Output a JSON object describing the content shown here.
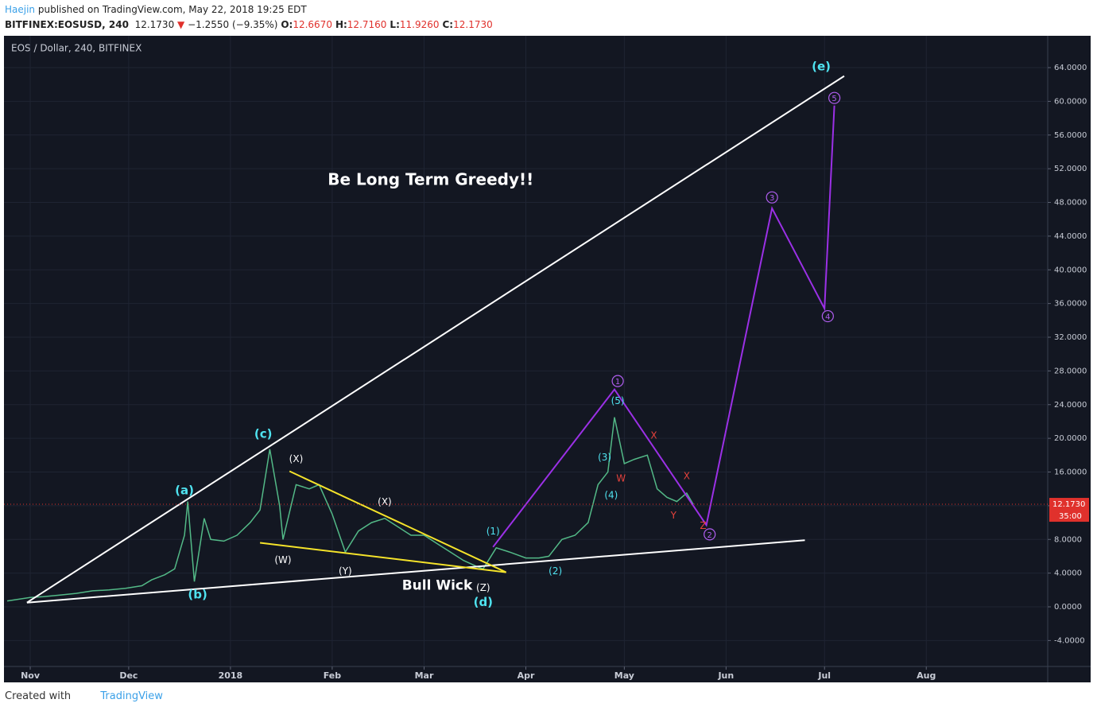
{
  "header": {
    "author": "Haejin",
    "published": "published on TradingView.com, May 22, 2018 19:25 EDT",
    "symbol": "BITFINEX:EOSUSD, 240",
    "last": "12.1730",
    "arrow": "▼",
    "change": "−1.2550 (−9.35%)",
    "ohlc": [
      {
        "label": "O:",
        "value": "12.6670"
      },
      {
        "label": "H:",
        "value": "12.7160"
      },
      {
        "label": "L:",
        "value": "11.9260"
      },
      {
        "label": "C:",
        "value": "12.1730"
      }
    ]
  },
  "footer": {
    "created": "Created with",
    "brand": "TradingView"
  },
  "chart_data": {
    "type": "line",
    "title": "EOS / Dollar, 240, BITFINEX",
    "xlim": [
      "2017-10-24",
      "2018-09-07"
    ],
    "ylim": [
      -7.08,
      67.78
    ],
    "grid": true,
    "xticks": [
      {
        "value": "2017-11-01",
        "label": "Nov"
      },
      {
        "value": "2017-12-01",
        "label": "Dec"
      },
      {
        "value": "2018-01-01",
        "label": "2018"
      },
      {
        "value": "2018-02-01",
        "label": "Feb"
      },
      {
        "value": "2018-03-01",
        "label": "Mar"
      },
      {
        "value": "2018-04-01",
        "label": "Apr"
      },
      {
        "value": "2018-05-01",
        "label": "May"
      },
      {
        "value": "2018-06-01",
        "label": "Jun"
      },
      {
        "value": "2018-07-01",
        "label": "Jul"
      },
      {
        "value": "2018-08-01",
        "label": "Aug"
      }
    ],
    "yticks": [
      {
        "value": 64,
        "label": "64.0000"
      },
      {
        "value": 60,
        "label": "60.0000"
      },
      {
        "value": 56,
        "label": "56.0000"
      },
      {
        "value": 52,
        "label": "52.0000"
      },
      {
        "value": 48,
        "label": "48.0000"
      },
      {
        "value": 44,
        "label": "44.0000"
      },
      {
        "value": 40,
        "label": "40.0000"
      },
      {
        "value": 36,
        "label": "36.0000"
      },
      {
        "value": 32,
        "label": "32.0000"
      },
      {
        "value": 28,
        "label": "28.0000"
      },
      {
        "value": 24,
        "label": "24.0000"
      },
      {
        "value": 20,
        "label": "20.0000"
      },
      {
        "value": 16,
        "label": "16.0000"
      },
      {
        "value": 12,
        "label": "12.0000"
      },
      {
        "value": 8,
        "label": "8.0000"
      },
      {
        "value": 4,
        "label": "4.0000"
      },
      {
        "value": 0,
        "label": "0.0000"
      },
      {
        "value": -4,
        "label": "-4.0000"
      }
    ],
    "series": [
      {
        "name": "EOSUSD",
        "color": "#53b987",
        "x": [
          "2017-10-25",
          "2017-11-01",
          "2017-11-05",
          "2017-11-10",
          "2017-11-15",
          "2017-11-20",
          "2017-11-25",
          "2017-11-30",
          "2017-12-05",
          "2017-12-08",
          "2017-12-12",
          "2017-12-15",
          "2017-12-18",
          "2017-12-19",
          "2017-12-21",
          "2017-12-24",
          "2017-12-26",
          "2017-12-30",
          "2018-01-03",
          "2018-01-07",
          "2018-01-10",
          "2018-01-13",
          "2018-01-16",
          "2018-01-17",
          "2018-01-21",
          "2018-01-25",
          "2018-01-28",
          "2018-02-01",
          "2018-02-05",
          "2018-02-09",
          "2018-02-13",
          "2018-02-17",
          "2018-02-21",
          "2018-02-25",
          "2018-03-01",
          "2018-03-05",
          "2018-03-09",
          "2018-03-13",
          "2018-03-17",
          "2018-03-19",
          "2018-03-23",
          "2018-03-27",
          "2018-04-01",
          "2018-04-05",
          "2018-04-08",
          "2018-04-12",
          "2018-04-16",
          "2018-04-20",
          "2018-04-23",
          "2018-04-26",
          "2018-04-28",
          "2018-05-01",
          "2018-05-04",
          "2018-05-08",
          "2018-05-11",
          "2018-05-14",
          "2018-05-17",
          "2018-05-20",
          "2018-05-22"
        ],
        "values": [
          0.7,
          1.1,
          1.2,
          1.4,
          1.6,
          1.9,
          2.0,
          2.2,
          2.5,
          3.2,
          3.8,
          4.5,
          8.5,
          12.5,
          3.0,
          10.5,
          8.0,
          7.8,
          8.5,
          10.0,
          11.5,
          18.7,
          12.0,
          8.0,
          14.5,
          14.0,
          14.5,
          11.0,
          6.5,
          9.0,
          10.0,
          10.5,
          9.5,
          8.5,
          8.5,
          7.5,
          6.5,
          5.5,
          4.8,
          4.5,
          7.0,
          6.5,
          5.8,
          5.8,
          6.0,
          8.0,
          8.5,
          10.0,
          14.5,
          16.0,
          22.5,
          17.0,
          17.5,
          18.0,
          14.0,
          13.0,
          12.5,
          13.5,
          12.173
        ]
      }
    ],
    "last_price": {
      "value": 12.173,
      "label": "12.1730",
      "countdown": "35:00"
    },
    "lines": [
      {
        "name": "upper-trend",
        "color": "#ffffff",
        "x": [
          "2017-10-31",
          "2018-07-07"
        ],
        "y": [
          0.5,
          63.0
        ]
      },
      {
        "name": "lower-trend",
        "color": "#ffffff",
        "x": [
          "2017-10-31",
          "2018-06-25"
        ],
        "y": [
          0.5,
          7.9
        ]
      },
      {
        "name": "yellow-upper",
        "color": "#f5e32a",
        "x": [
          "2018-01-19",
          "2018-03-26"
        ],
        "y": [
          16.1,
          4.1
        ]
      },
      {
        "name": "yellow-lower",
        "color": "#f5e32a",
        "x": [
          "2018-01-10",
          "2018-03-26"
        ],
        "y": [
          7.6,
          4.1
        ]
      },
      {
        "name": "wave-projection",
        "color": "#9b30e6",
        "x": [
          "2018-03-22",
          "2018-04-28",
          "2018-05-26",
          "2018-06-15",
          "2018-07-01",
          "2018-07-04"
        ],
        "y": [
          7.1,
          25.8,
          9.7,
          47.3,
          35.4,
          59.5
        ]
      }
    ],
    "annotations": [
      {
        "text": "Be Long Term Greedy!!",
        "x": "2018-03-03",
        "y": 50.6,
        "color": "#ffffff",
        "size": 20,
        "bold": true
      },
      {
        "text": "Bull Wick",
        "x": "2018-03-05",
        "y": 2.5,
        "color": "#ffffff",
        "size": 17,
        "bold": true
      },
      {
        "text": "(a)",
        "x": "2017-12-18",
        "y": 13.8,
        "color": "#4fe3f0",
        "size": 15,
        "bold": true
      },
      {
        "text": "(b)",
        "x": "2017-12-22",
        "y": 1.4,
        "color": "#4fe3f0",
        "size": 15,
        "bold": true
      },
      {
        "text": "(c)",
        "x": "2018-01-11",
        "y": 20.5,
        "color": "#4fe3f0",
        "size": 15,
        "bold": true
      },
      {
        "text": "(d)",
        "x": "2018-03-19",
        "y": 0.5,
        "color": "#4fe3f0",
        "size": 15,
        "bold": true
      },
      {
        "text": "(e)",
        "x": "2018-06-30",
        "y": 64.1,
        "color": "#4fe3f0",
        "size": 15,
        "bold": true
      },
      {
        "text": "(X)",
        "x": "2018-01-21",
        "y": 17.5,
        "color": "#ffffff",
        "size": 12,
        "bold": false
      },
      {
        "text": "(W)",
        "x": "2018-01-17",
        "y": 5.5,
        "color": "#ffffff",
        "size": 12,
        "bold": false
      },
      {
        "text": "(Y)",
        "x": "2018-02-05",
        "y": 4.2,
        "color": "#ffffff",
        "size": 12,
        "bold": false
      },
      {
        "text": "(X)",
        "x": "2018-02-17",
        "y": 12.4,
        "color": "#ffffff",
        "size": 12,
        "bold": false
      },
      {
        "text": "(Z)",
        "x": "2018-03-19",
        "y": 2.2,
        "color": "#ffffff",
        "size": 12,
        "bold": false
      },
      {
        "text": "(1)",
        "x": "2018-03-22",
        "y": 8.9,
        "color": "#4fe3f0",
        "size": 12,
        "bold": false
      },
      {
        "text": "(2)",
        "x": "2018-04-10",
        "y": 4.2,
        "color": "#4fe3f0",
        "size": 12,
        "bold": false
      },
      {
        "text": "(3)",
        "x": "2018-04-25",
        "y": 17.7,
        "color": "#4fe3f0",
        "size": 12,
        "bold": false
      },
      {
        "text": "(4)",
        "x": "2018-04-27",
        "y": 13.2,
        "color": "#4fe3f0",
        "size": 12,
        "bold": false
      },
      {
        "text": "(5)",
        "x": "2018-04-29",
        "y": 24.4,
        "color": "#4fe3f0",
        "size": 12,
        "bold": false
      },
      {
        "text": "W",
        "x": "2018-04-30",
        "y": 15.2,
        "color": "#e6423c",
        "size": 12,
        "bold": false
      },
      {
        "text": "X",
        "x": "2018-05-10",
        "y": 20.3,
        "color": "#e6423c",
        "size": 12,
        "bold": false
      },
      {
        "text": "Y",
        "x": "2018-05-16",
        "y": 10.8,
        "color": "#e6423c",
        "size": 12,
        "bold": false
      },
      {
        "text": "X",
        "x": "2018-05-20",
        "y": 15.5,
        "color": "#e6423c",
        "size": 12,
        "bold": false
      },
      {
        "text": "Z",
        "x": "2018-05-25",
        "y": 9.6,
        "color": "#e6423c",
        "size": 12,
        "bold": false
      }
    ],
    "circled": [
      {
        "text": "1",
        "x": "2018-04-29",
        "y": 26.8,
        "color": "#b05ef0"
      },
      {
        "text": "2",
        "x": "2018-05-27",
        "y": 8.6,
        "color": "#b05ef0"
      },
      {
        "text": "3",
        "x": "2018-06-15",
        "y": 48.6,
        "color": "#b05ef0"
      },
      {
        "text": "4",
        "x": "2018-07-02",
        "y": 34.5,
        "color": "#b05ef0"
      },
      {
        "text": "5",
        "x": "2018-07-04",
        "y": 60.4,
        "color": "#b05ef0"
      }
    ]
  }
}
